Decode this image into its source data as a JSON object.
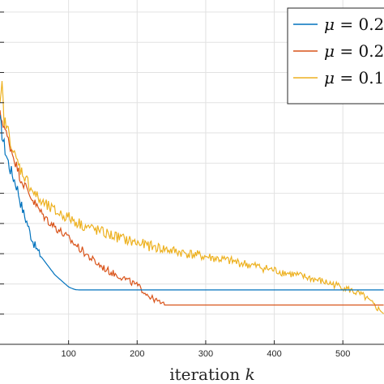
{
  "chart_data": {
    "type": "line",
    "xlabel": "iteration k",
    "xlabel_text": "iteration ",
    "xlabel_var": "k",
    "xlim": [
      0,
      560
    ],
    "ylim": [
      0,
      11.4
    ],
    "xticks": [
      100,
      200,
      300,
      400,
      500
    ],
    "xtick_labels": [
      "100",
      "200",
      "300",
      "400",
      "500"
    ],
    "yticks": [
      1,
      2,
      3,
      4,
      5,
      6,
      7,
      8,
      9,
      10,
      11
    ],
    "grid": true,
    "legend_position": "top-right",
    "series": [
      {
        "name": "μ = 0.2",
        "legend_symbol": "μ",
        "legend_rest": " = 0.2",
        "color": "#0072BD",
        "x": [
          0,
          5,
          10,
          15,
          20,
          25,
          30,
          35,
          40,
          45,
          50,
          60,
          70,
          80,
          90,
          100,
          105,
          110,
          115,
          120,
          150,
          200,
          250,
          300,
          350,
          400,
          450,
          500,
          560
        ],
        "y": [
          7.4,
          6.7,
          6.2,
          5.8,
          5.5,
          5.2,
          4.7,
          4.3,
          4.0,
          3.6,
          3.3,
          2.9,
          2.6,
          2.3,
          2.1,
          1.9,
          1.85,
          1.81,
          1.8,
          1.8,
          1.8,
          1.8,
          1.8,
          1.8,
          1.8,
          1.8,
          1.8,
          1.8,
          1.8
        ],
        "noise": 0.25,
        "noise_until": 60
      },
      {
        "name": "μ = 0.2",
        "legend_symbol": "μ",
        "legend_rest": " = 0.2",
        "color": "#D95319",
        "x": [
          0,
          5,
          10,
          20,
          30,
          40,
          50,
          60,
          70,
          80,
          100,
          120,
          140,
          160,
          180,
          200,
          210,
          220,
          230,
          240,
          250,
          300,
          400,
          500,
          560
        ],
        "y": [
          7.6,
          7.3,
          6.9,
          6.2,
          5.5,
          5.1,
          4.7,
          4.35,
          4.1,
          3.9,
          3.5,
          3.1,
          2.7,
          2.4,
          2.2,
          1.95,
          1.75,
          1.55,
          1.42,
          1.3,
          1.3,
          1.3,
          1.3,
          1.3,
          1.3
        ],
        "noise": 0.18,
        "noise_until": 240
      },
      {
        "name": "μ = 0.1",
        "legend_symbol": "μ",
        "legend_rest": " = 0.1",
        "color": "#EDB120",
        "x": [
          0,
          3,
          6,
          10,
          15,
          20,
          30,
          40,
          50,
          60,
          80,
          100,
          120,
          150,
          200,
          250,
          300,
          350,
          400,
          450,
          500,
          530,
          545,
          560
        ],
        "y": [
          7.8,
          8.6,
          7.4,
          7.2,
          6.8,
          6.3,
          5.8,
          5.4,
          5.0,
          4.7,
          4.4,
          4.2,
          3.95,
          3.7,
          3.35,
          3.1,
          2.9,
          2.7,
          2.45,
          2.2,
          1.9,
          1.6,
          1.3,
          1.0
        ],
        "noise": 0.22,
        "noise_until": 555
      }
    ]
  }
}
